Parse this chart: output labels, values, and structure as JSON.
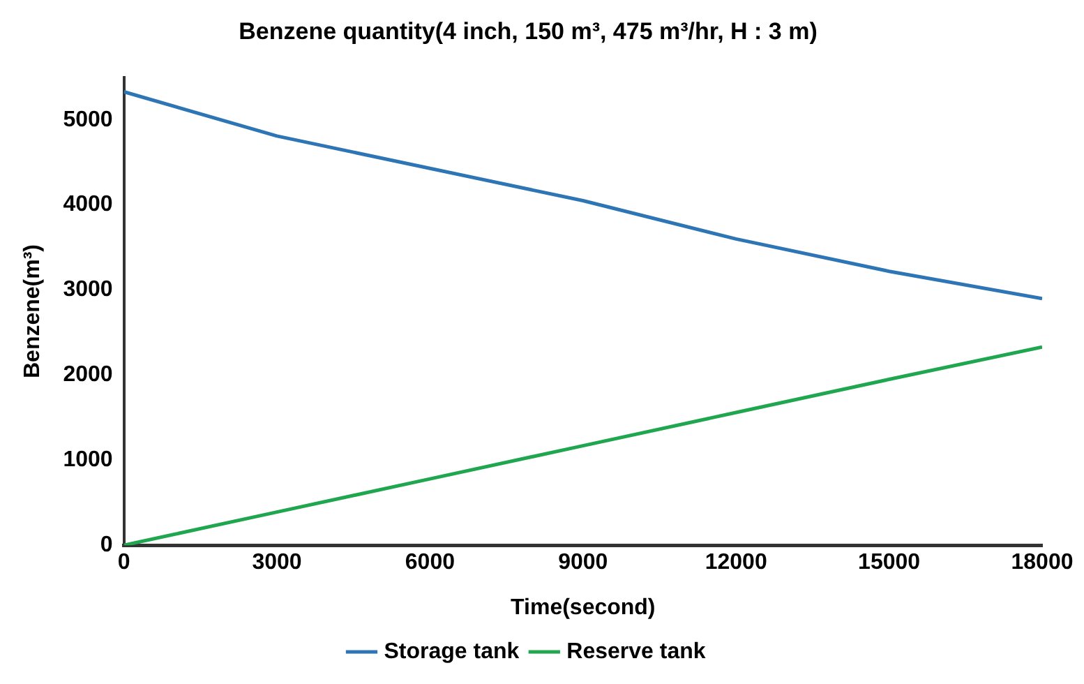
{
  "chart_data": {
    "type": "line",
    "title": "Benzene quantity(4 inch, 150 m³, 475 m³/hr, H : 3 m)",
    "xlabel": "Time(second)",
    "ylabel": "Benzene(m³)",
    "x": [
      0,
      3000,
      6000,
      9000,
      12000,
      15000,
      18000
    ],
    "series": [
      {
        "name": "Storage tank",
        "color": "#2e75b6",
        "values": [
          5330,
          4810,
          4430,
          4050,
          3600,
          3220,
          2900
        ]
      },
      {
        "name": "Reserve tank",
        "color": "#1fa64f",
        "values": [
          0,
          390,
          780,
          1170,
          1560,
          1950,
          2330
        ]
      }
    ],
    "xlim": [
      0,
      18000
    ],
    "xticks": [
      0,
      3000,
      6000,
      9000,
      12000,
      15000,
      18000
    ],
    "ylim": [
      0,
      5500
    ],
    "yticks": [
      0,
      1000,
      2000,
      3000,
      4000,
      5000
    ],
    "grid": false,
    "legend": "bottom",
    "marker": "none",
    "line_style": "solid"
  }
}
